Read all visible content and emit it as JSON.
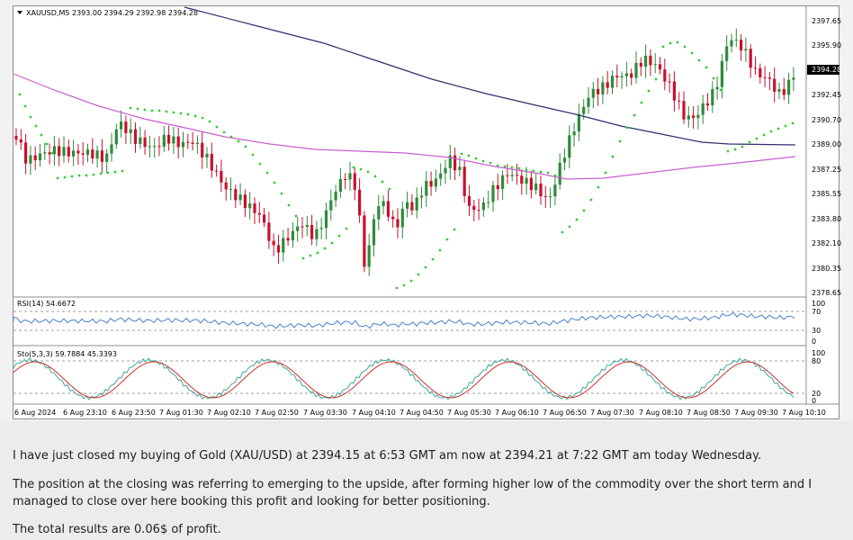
{
  "chart": {
    "symbol_title": "XAUUSD,M5  2393.00 2394.29 2392.98 2394.28",
    "current_price": "2394.28",
    "price_axis_ticks": [
      "2397.65",
      "2395.90",
      "2394.28",
      "2392.45",
      "2390.70",
      "2389.00",
      "2387.25",
      "2385.55",
      "2383.80",
      "2382.10",
      "2380.35",
      "2378.65"
    ],
    "rsi_label": "RSI(14) 54.6672",
    "rsi_ticks": [
      "100",
      "70",
      "30",
      "0"
    ],
    "sto_label": "Sto(5,3,3) 59.7884 45.3393",
    "sto_ticks": [
      "100",
      "80",
      "20",
      "0"
    ],
    "time_axis_ticks": [
      "6 Aug 2024",
      "6 Aug 23:10",
      "6 Aug 23:50",
      "7 Aug 01:30",
      "7 Aug 02:10",
      "7 Aug 02:50",
      "7 Aug 03:30",
      "7 Aug 04:10",
      "7 Aug 04:50",
      "7 Aug 05:30",
      "7 Aug 06:10",
      "7 Aug 06:50",
      "7 Aug 07:30",
      "7 Aug 08:10",
      "7 Aug 08:50",
      "7 Aug 09:30",
      "7 Aug 10:10"
    ],
    "colors": {
      "bull": "#2e8b3a",
      "bear": "#c8102e",
      "ma_slow": "#2f2f6e",
      "ma_fast": "#c85fd0",
      "sar": "#33cc33",
      "rsi": "#4a7fd0",
      "sto_main": "#3ba89a",
      "sto_signal": "#d0302a",
      "grid": "#a0a0a0"
    }
  },
  "post": {
    "paragraph_1": "I have just closed my buying of Gold (XAU/USD) at 2394.15 at 6:53 GMT am now at 2394.21 at 7:22 GMT am today Wednesday.",
    "paragraph_2": "The position at the closing was referring to emerging to the upside, after forming higher low of the commodity over the short term and I managed to close over here booking this profit and looking for better positioning.",
    "paragraph_3": "The total results are 0.06$ of profit."
  }
}
